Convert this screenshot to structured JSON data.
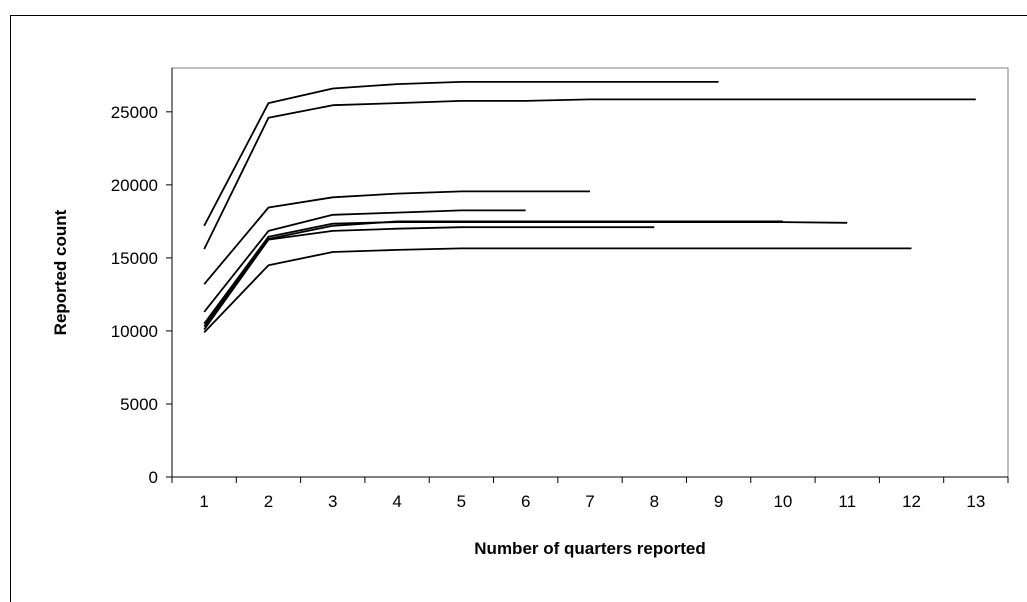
{
  "chart_data": {
    "type": "line",
    "title": "",
    "xlabel": "Number of quarters reported",
    "ylabel": "Reported count",
    "x_ticks": [
      "1",
      "2",
      "3",
      "4",
      "5",
      "6",
      "7",
      "8",
      "9",
      "10",
      "11",
      "12",
      "13"
    ],
    "y_ticks": [
      "0",
      "5000",
      "10000",
      "15000",
      "20000",
      "25000"
    ],
    "xlim": [
      0.5,
      13.5
    ],
    "ylim": [
      0,
      28000
    ],
    "grid": false,
    "legend": "none",
    "line_color": "#000000",
    "series": [
      {
        "x": [
          1,
          2,
          3,
          4,
          5,
          6,
          7,
          8,
          9
        ],
        "values": [
          17200,
          25600,
          26600,
          26900,
          27050,
          27050,
          27050,
          27050,
          27050
        ]
      },
      {
        "x": [
          1,
          2,
          3,
          4,
          5,
          6,
          7,
          8,
          9,
          10,
          11,
          12,
          13
        ],
        "values": [
          15600,
          24600,
          25450,
          25600,
          25750,
          25750,
          25850,
          25850,
          25850,
          25850,
          25850,
          25850,
          25850
        ]
      },
      {
        "x": [
          1,
          2,
          3,
          4,
          5,
          6,
          7
        ],
        "values": [
          13200,
          18450,
          19150,
          19400,
          19550,
          19550,
          19550
        ]
      },
      {
        "x": [
          1,
          2,
          3,
          4,
          5,
          6
        ],
        "values": [
          11300,
          16850,
          17950,
          18100,
          18250,
          18250
        ]
      },
      {
        "x": [
          1,
          2,
          3,
          4,
          5,
          6,
          7,
          8,
          9,
          10,
          11
        ],
        "values": [
          10500,
          16450,
          17350,
          17450,
          17450,
          17450,
          17450,
          17450,
          17450,
          17450,
          17400
        ]
      },
      {
        "x": [
          1,
          2,
          3,
          4,
          5,
          6,
          7,
          8,
          9,
          10
        ],
        "values": [
          10300,
          16300,
          17200,
          17500,
          17500,
          17500,
          17500,
          17500,
          17500,
          17500
        ]
      },
      {
        "x": [
          1,
          2,
          3,
          4,
          5,
          6,
          7,
          8
        ],
        "values": [
          10100,
          16250,
          16850,
          17000,
          17100,
          17100,
          17100,
          17100
        ]
      },
      {
        "x": [
          1,
          2,
          3,
          4,
          5,
          6,
          7,
          8,
          9,
          10,
          11,
          12
        ],
        "values": [
          9900,
          14500,
          15400,
          15550,
          15650,
          15650,
          15650,
          15650,
          15650,
          15650,
          15650,
          15650
        ]
      }
    ]
  }
}
